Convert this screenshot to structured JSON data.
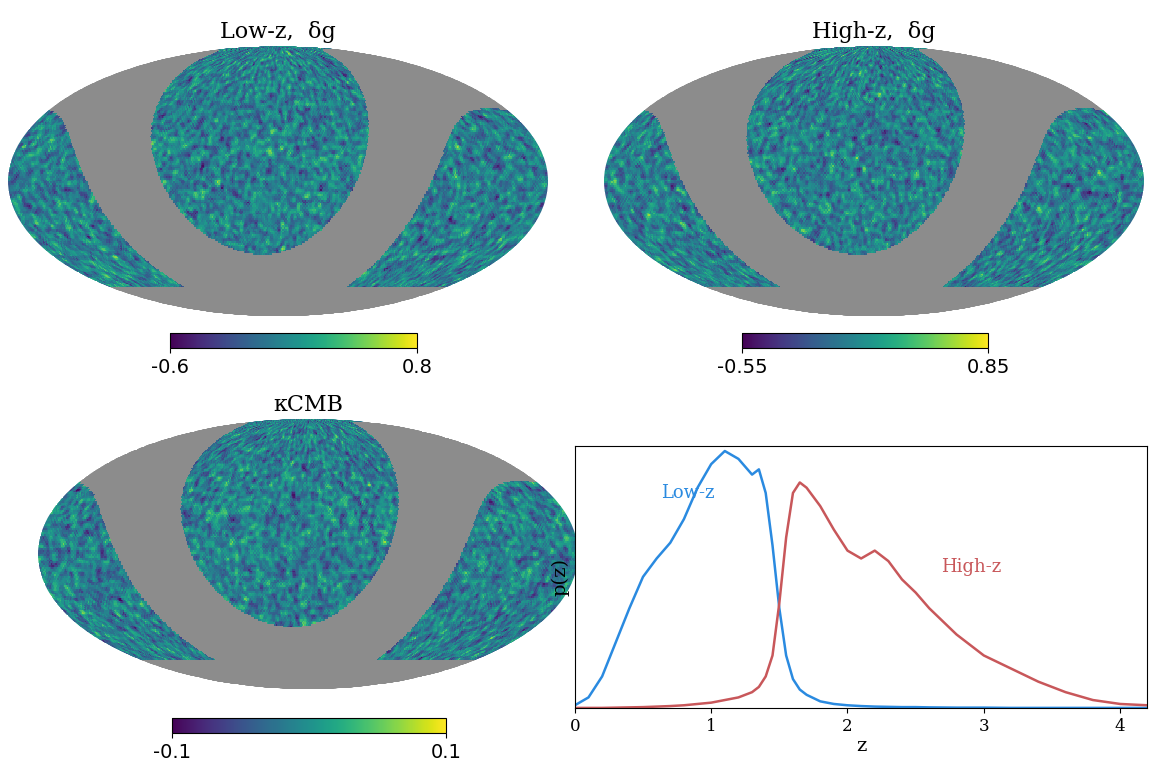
{
  "chart_data": [
    {
      "type": "map",
      "title": "Low-z,  δg",
      "tick_labels": false,
      "colorbar_lim": [
        -0.6,
        0.8
      ],
      "colorbar_ticks": [
        -0.6,
        0.8
      ]
    },
    {
      "type": "map",
      "title": "High-z,  δg",
      "tick_labels": false,
      "colorbar_lim": [
        -0.55,
        0.85
      ],
      "colorbar_ticks": [
        -0.55,
        0.85
      ]
    },
    {
      "type": "map",
      "title": "κCMB",
      "tick_labels": false,
      "colorbar_lim": [
        -0.1,
        0.1
      ],
      "colorbar_ticks": [
        -0.1,
        0.1
      ]
    },
    {
      "type": "line",
      "xlabel": "z",
      "ylabel": "p(z)",
      "tick_labels": "x",
      "xlim": [
        0,
        4.2
      ],
      "xticks": [
        0,
        1,
        2,
        3,
        4
      ],
      "ylim": [
        0,
        1
      ],
      "yticks": [],
      "x": [
        0,
        0.1,
        0.2,
        0.3,
        0.4,
        0.5,
        0.6,
        0.7,
        0.8,
        0.9,
        1.0,
        1.1,
        1.2,
        1.3,
        1.35,
        1.4,
        1.45,
        1.5,
        1.55,
        1.6,
        1.65,
        1.7,
        1.8,
        1.9,
        2.0,
        2.1,
        2.2,
        2.3,
        2.4,
        2.5,
        2.6,
        2.8,
        3.0,
        3.2,
        3.4,
        3.6,
        3.8,
        4.0,
        4.2
      ],
      "series": [
        {
          "name": "Low-z",
          "color": "#2a8ae0",
          "values": [
            0.01,
            0.04,
            0.12,
            0.25,
            0.38,
            0.5,
            0.57,
            0.63,
            0.72,
            0.84,
            0.93,
            0.98,
            0.95,
            0.89,
            0.91,
            0.82,
            0.62,
            0.38,
            0.2,
            0.11,
            0.07,
            0.05,
            0.025,
            0.015,
            0.01,
            0.007,
            0.005,
            0.004,
            0.003,
            0.003,
            0.002,
            0.001,
            0.001,
            0,
            0,
            0,
            0,
            0,
            0
          ]
        },
        {
          "name": "High-z",
          "color": "#c8575a",
          "values": [
            0,
            0,
            0,
            0.001,
            0.002,
            0.003,
            0.005,
            0.007,
            0.01,
            0.015,
            0.02,
            0.03,
            0.04,
            0.06,
            0.08,
            0.12,
            0.2,
            0.4,
            0.65,
            0.82,
            0.86,
            0.84,
            0.77,
            0.68,
            0.6,
            0.57,
            0.6,
            0.56,
            0.49,
            0.44,
            0.38,
            0.28,
            0.2,
            0.15,
            0.1,
            0.06,
            0.03,
            0.015,
            0.01
          ]
        }
      ]
    }
  ]
}
